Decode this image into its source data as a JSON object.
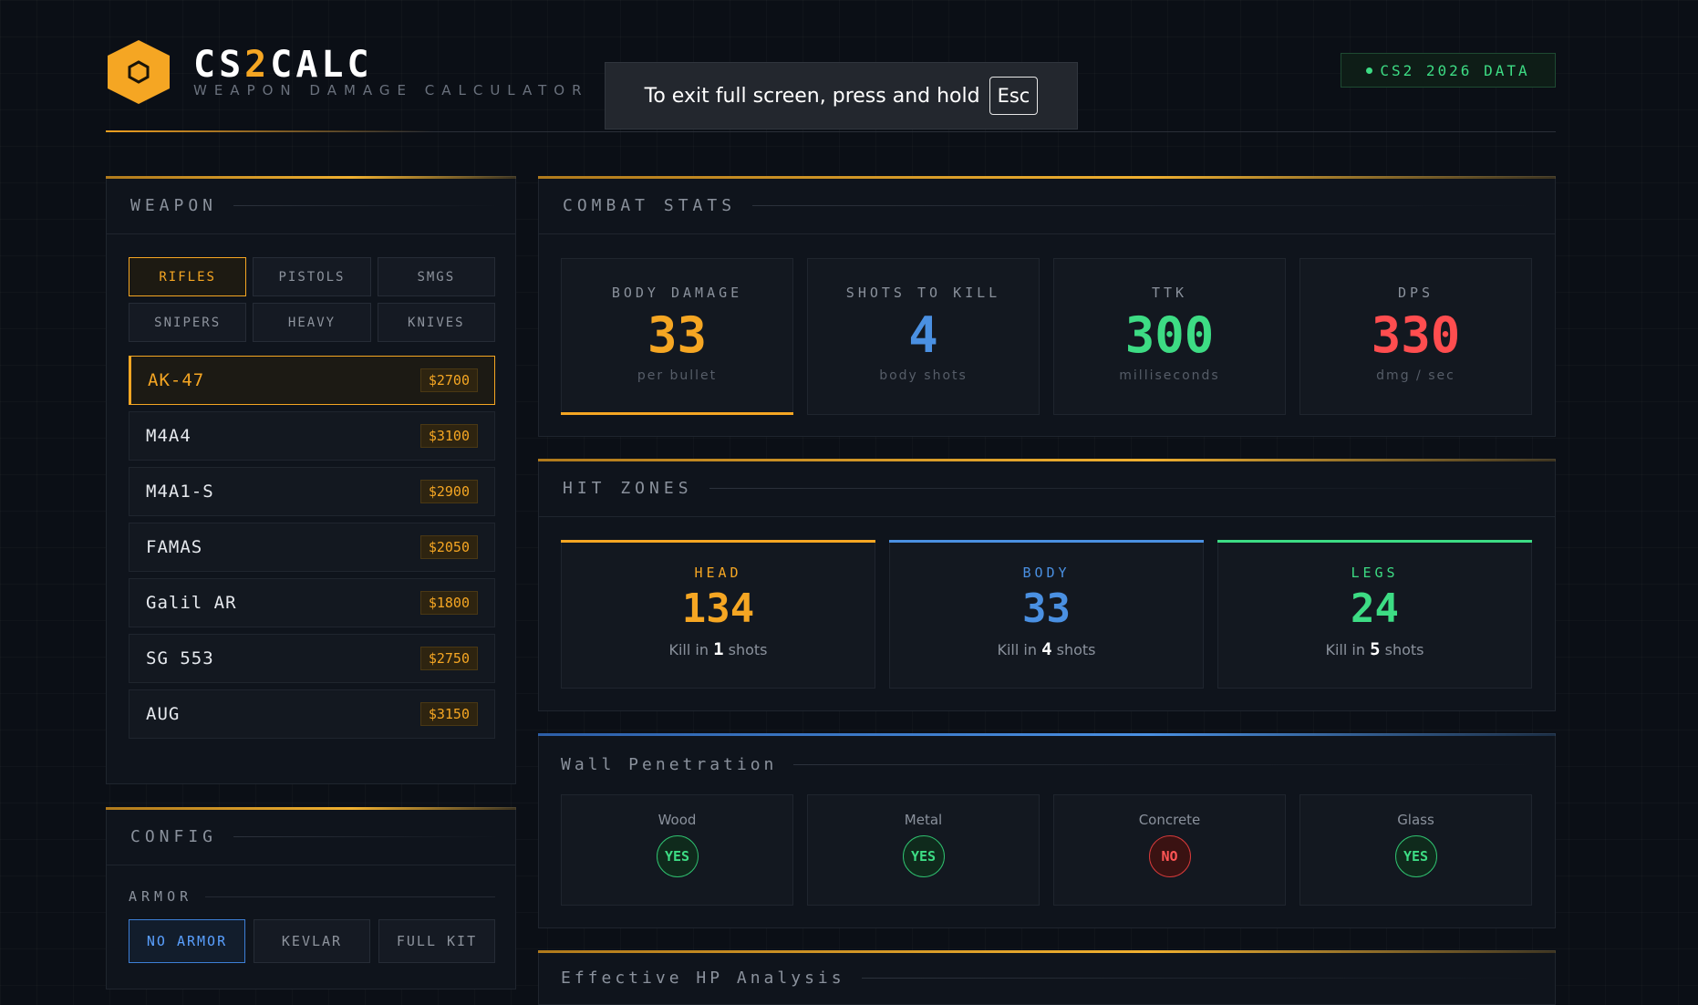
{
  "header": {
    "brand_prefix": "CS",
    "brand_accent": "2",
    "brand_suffix": "CALC",
    "tagline": "WEAPON DAMAGE CALCULATOR",
    "data_badge": "CS2 2026 DATA"
  },
  "fullscreen_toast": {
    "message": "To exit full screen, press and hold",
    "key": "Esc"
  },
  "weapon_panel": {
    "title": "WEAPON",
    "categories": [
      {
        "label": "RIFLES",
        "active": true
      },
      {
        "label": "PISTOLS",
        "active": false
      },
      {
        "label": "SMGS",
        "active": false
      },
      {
        "label": "SNIPERS",
        "active": false
      },
      {
        "label": "HEAVY",
        "active": false
      },
      {
        "label": "KNIVES",
        "active": false
      }
    ],
    "weapons": [
      {
        "name": "AK-47",
        "price": "$2700"
      },
      {
        "name": "M4A4",
        "price": "$3100"
      },
      {
        "name": "M4A1-S",
        "price": "$2900"
      },
      {
        "name": "FAMAS",
        "price": "$2050"
      },
      {
        "name": "Galil AR",
        "price": "$1800"
      },
      {
        "name": "SG 553",
        "price": "$2750"
      },
      {
        "name": "AUG",
        "price": "$3150"
      }
    ]
  },
  "config_panel": {
    "title": "CONFIG",
    "armor_label": "ARMOR",
    "armor_options": [
      "NO ARMOR",
      "KEVLAR",
      "FULL KIT"
    ]
  },
  "combat_stats": {
    "title": "COMBAT STATS",
    "stats": [
      {
        "label": "BODY DAMAGE",
        "value": "33",
        "sub": "per bullet",
        "color": "#f5a623"
      },
      {
        "label": "SHOTS TO KILL",
        "value": "4",
        "sub": "body shots",
        "color": "#4a90e2"
      },
      {
        "label": "TTK",
        "value": "300",
        "sub": "milliseconds",
        "color": "#3ddc84"
      },
      {
        "label": "DPS",
        "value": "330",
        "sub": "dmg / sec",
        "color": "#ff4d4f"
      }
    ]
  },
  "hit_zones": {
    "title": "HIT ZONES",
    "kill_prefix": "Kill in",
    "kill_suffix": "shots",
    "zones": [
      {
        "label": "HEAD",
        "value": "134",
        "shots": "1",
        "color": "#f5a623"
      },
      {
        "label": "BODY",
        "value": "33",
        "shots": "4",
        "color": "#4a90e2"
      },
      {
        "label": "LEGS",
        "value": "24",
        "shots": "5",
        "color": "#3ddc84"
      }
    ]
  },
  "wall_penetration": {
    "title": "Wall Penetration",
    "materials": [
      {
        "label": "Wood",
        "result": "YES"
      },
      {
        "label": "Metal",
        "result": "YES"
      },
      {
        "label": "Concrete",
        "result": "NO"
      },
      {
        "label": "Glass",
        "result": "YES"
      }
    ]
  },
  "next_section": {
    "title": "Effective HP Analysis"
  }
}
